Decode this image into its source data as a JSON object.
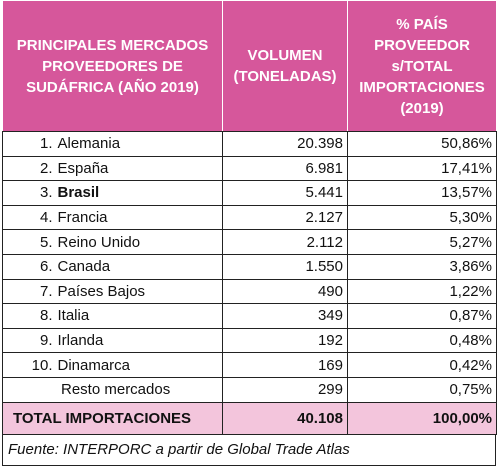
{
  "header": {
    "columns": [
      "PRINCIPALES MERCADOS PROVEEDORES DE SUDÁFRICA (AÑO 2019)",
      "VOLUMEN (TONELADAS)",
      "% PAÍS PROVEEDOR s/TOTAL IMPORTACIONES (2019)"
    ]
  },
  "table": {
    "rows": [
      {
        "rank": "1.",
        "market": "Alemania",
        "volume": "20.398",
        "share": "50,86%"
      },
      {
        "rank": "2.",
        "market": "España",
        "volume": "6.981",
        "share": "17,41%"
      },
      {
        "rank": "3.",
        "market": "Brasil",
        "volume": "5.441",
        "share": "13,57%",
        "bold": true
      },
      {
        "rank": "4.",
        "market": "Francia",
        "volume": "2.127",
        "share": "5,30%"
      },
      {
        "rank": "5.",
        "market": "Reino Unido",
        "volume": "2.112",
        "share": "5,27%"
      },
      {
        "rank": "6.",
        "market": "Canada",
        "volume": "1.550",
        "share": "3,86%"
      },
      {
        "rank": "7.",
        "market": "Países Bajos",
        "volume": "490",
        "share": "1,22%"
      },
      {
        "rank": "8.",
        "market": "Italia",
        "volume": "349",
        "share": "0,87%"
      },
      {
        "rank": "9.",
        "market": "Irlanda",
        "volume": "192",
        "share": "0,48%"
      },
      {
        "rank": "10.",
        "market": "Dinamarca",
        "volume": "169",
        "share": "0,42%"
      },
      {
        "market": "Resto mercados",
        "volume": "299",
        "share": "0,75%"
      }
    ],
    "total": {
      "label": "TOTAL IMPORTACIONES",
      "volume": "40.108",
      "share": "100,00%"
    }
  },
  "footer": {
    "source": "Fuente: INTERPORC a partir de Global Trade Atlas"
  }
}
